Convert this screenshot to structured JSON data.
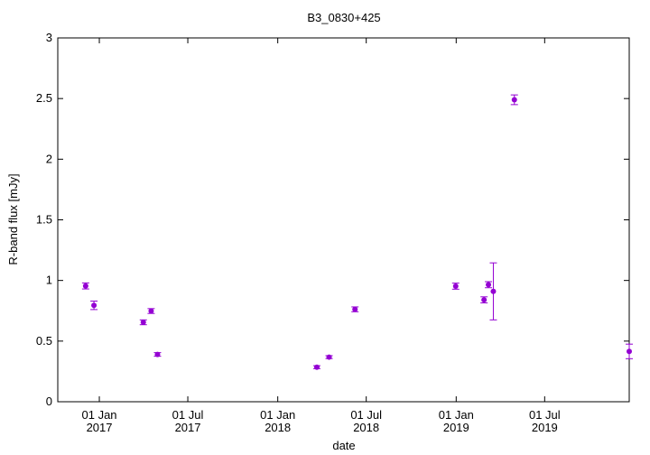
{
  "chart_data": {
    "type": "scatter",
    "title": "B3_0830+425",
    "xlabel": "date",
    "ylabel": "R-band flux [mJy]",
    "xlim": [
      "2016-10-08",
      "2019-12-21"
    ],
    "ylim": [
      0,
      3
    ],
    "yticks": [
      {
        "value": 0,
        "label": "0"
      },
      {
        "value": 0.5,
        "label": "0.5"
      },
      {
        "value": 1,
        "label": "1"
      },
      {
        "value": 1.5,
        "label": "1.5"
      },
      {
        "value": 2,
        "label": "2"
      },
      {
        "value": 2.5,
        "label": "2.5"
      },
      {
        "value": 3,
        "label": "3"
      }
    ],
    "xticks": [
      {
        "date": "2017-01-01",
        "line1": "01 Jan",
        "line2": "2017"
      },
      {
        "date": "2017-07-01",
        "line1": "01 Jul",
        "line2": "2017"
      },
      {
        "date": "2018-01-01",
        "line1": "01 Jan",
        "line2": "2018"
      },
      {
        "date": "2018-07-01",
        "line1": "01 Jul",
        "line2": "2018"
      },
      {
        "date": "2019-01-01",
        "line1": "01 Jan",
        "line2": "2019"
      },
      {
        "date": "2019-07-01",
        "line1": "01 Jul",
        "line2": "2019"
      }
    ],
    "grid": false,
    "marker_color": "#9400d3",
    "points": [
      {
        "date": "2016-12-04",
        "y": 0.955,
        "err": 0.025
      },
      {
        "date": "2016-12-21",
        "y": 0.795,
        "err": 0.035
      },
      {
        "date": "2017-04-01",
        "y": 0.655,
        "err": 0.02
      },
      {
        "date": "2017-04-17",
        "y": 0.748,
        "err": 0.02
      },
      {
        "date": "2017-04-30",
        "y": 0.39,
        "err": 0.015
      },
      {
        "date": "2018-03-22",
        "y": 0.285,
        "err": 0.012
      },
      {
        "date": "2018-04-16",
        "y": 0.368,
        "err": 0.012
      },
      {
        "date": "2018-06-08",
        "y": 0.762,
        "err": 0.02
      },
      {
        "date": "2018-12-31",
        "y": 0.953,
        "err": 0.025
      },
      {
        "date": "2019-02-27",
        "y": 0.84,
        "err": 0.025
      },
      {
        "date": "2019-03-08",
        "y": 0.965,
        "err": 0.025
      },
      {
        "date": "2019-03-18",
        "y": 0.91,
        "err": 0.235
      },
      {
        "date": "2019-04-30",
        "y": 2.49,
        "err": 0.04
      },
      {
        "date": "2019-12-21",
        "y": 0.415,
        "err": 0.06
      }
    ]
  }
}
